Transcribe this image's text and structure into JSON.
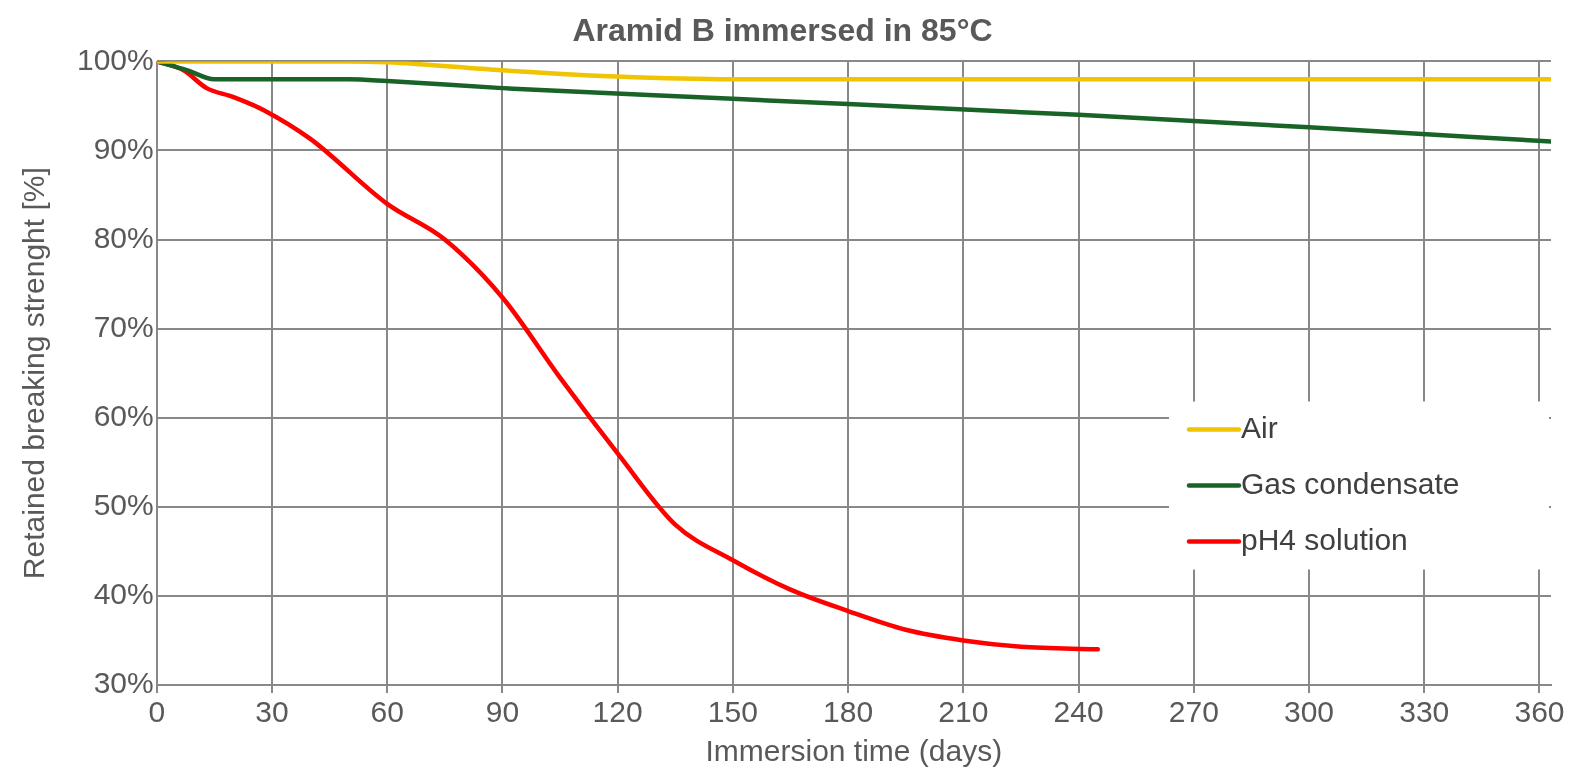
{
  "chart_data": {
    "type": "line",
    "title": "Aramid B immersed in 85°C",
    "xlabel": "Immersion time (days)",
    "ylabel": "Retained breaking strenght [%]",
    "xlim": [
      0,
      363
    ],
    "xticks": [
      0,
      30,
      60,
      90,
      120,
      150,
      180,
      210,
      240,
      270,
      300,
      330,
      360
    ],
    "ylim": [
      30,
      100
    ],
    "yticks": [
      {
        "value": 30,
        "label": "30%"
      },
      {
        "value": 40,
        "label": "40%"
      },
      {
        "value": 50,
        "label": "50%"
      },
      {
        "value": 60,
        "label": "60%"
      },
      {
        "value": 70,
        "label": "70%"
      },
      {
        "value": 80,
        "label": "80%"
      },
      {
        "value": 90,
        "label": "90%"
      },
      {
        "value": 100,
        "label": "100%"
      }
    ],
    "grid": true,
    "legend": "right",
    "marker": "none",
    "line_style": "solid",
    "series": [
      {
        "name": "Air",
        "color": "#f0c400",
        "x": [
          0,
          10,
          30,
          50,
          60,
          90,
          120,
          150,
          180,
          363
        ],
        "values": [
          100,
          100,
          100,
          100,
          99.9,
          99,
          98.3,
          98,
          98,
          98
        ]
      },
      {
        "name": "Gas condensate",
        "color": "#1a6328",
        "x": [
          0,
          8,
          15,
          30,
          50,
          60,
          90,
          150,
          240,
          300,
          363
        ],
        "values": [
          100,
          99,
          98,
          98,
          98,
          97.8,
          97,
          95.8,
          94,
          92.6,
          91
        ]
      },
      {
        "name": "pH4 solution",
        "color": "#ff0000",
        "x": [
          0,
          7,
          13,
          20,
          28,
          40,
          60,
          75,
          90,
          105,
          120,
          135,
          150,
          165,
          180,
          195,
          210,
          225,
          245
        ],
        "values": [
          100,
          99,
          97,
          96,
          94.5,
          91.3,
          84,
          80,
          73.5,
          64.5,
          56,
          48,
          44,
          40.7,
          38.3,
          36.2,
          35,
          34.3,
          34
        ]
      }
    ]
  }
}
